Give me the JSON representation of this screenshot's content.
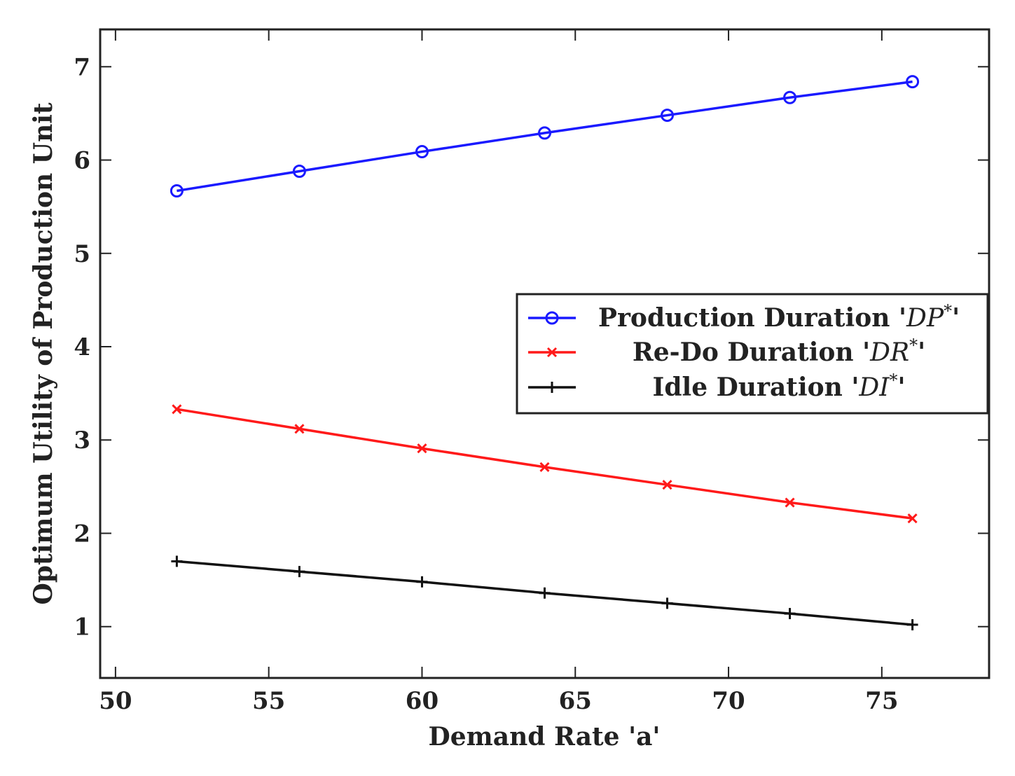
{
  "chart_data": {
    "type": "line",
    "title": "",
    "xlabel": "Demand Rate 'a'",
    "ylabel": "Optimum Utility of Production Unit",
    "xlim": [
      49.5,
      78.5
    ],
    "ylim": [
      0.45,
      7.4
    ],
    "xticks": [
      50,
      55,
      60,
      65,
      70,
      75
    ],
    "yticks": [
      1,
      2,
      3,
      4,
      5,
      6,
      7
    ],
    "grid": false,
    "legend_position": "center-right",
    "x": [
      52,
      56,
      60,
      64,
      68,
      72,
      76
    ],
    "series": [
      {
        "name": "Production Duration 'DP*'",
        "label_main": "Production Duration '",
        "label_italic": "DP",
        "label_sup": "*",
        "label_end": "'",
        "color": "#1a1aff",
        "marker": "circle",
        "values": [
          5.67,
          5.88,
          6.09,
          6.29,
          6.48,
          6.67,
          6.84
        ]
      },
      {
        "name": "Re-Do Duration 'DR*'",
        "label_main": "Re-Do Duration '",
        "label_italic": "DR",
        "label_sup": "*",
        "label_end": "'",
        "color": "#ff1a1a",
        "marker": "x",
        "values": [
          3.33,
          3.12,
          2.91,
          2.71,
          2.52,
          2.33,
          2.16
        ]
      },
      {
        "name": "Idle Duration 'DI*'",
        "label_main": "Idle Duration '",
        "label_italic": "DI",
        "label_sup": "*",
        "label_end": "'",
        "color": "#111111",
        "marker": "plus",
        "values": [
          1.7,
          1.59,
          1.48,
          1.36,
          1.25,
          1.14,
          1.02
        ]
      }
    ]
  }
}
